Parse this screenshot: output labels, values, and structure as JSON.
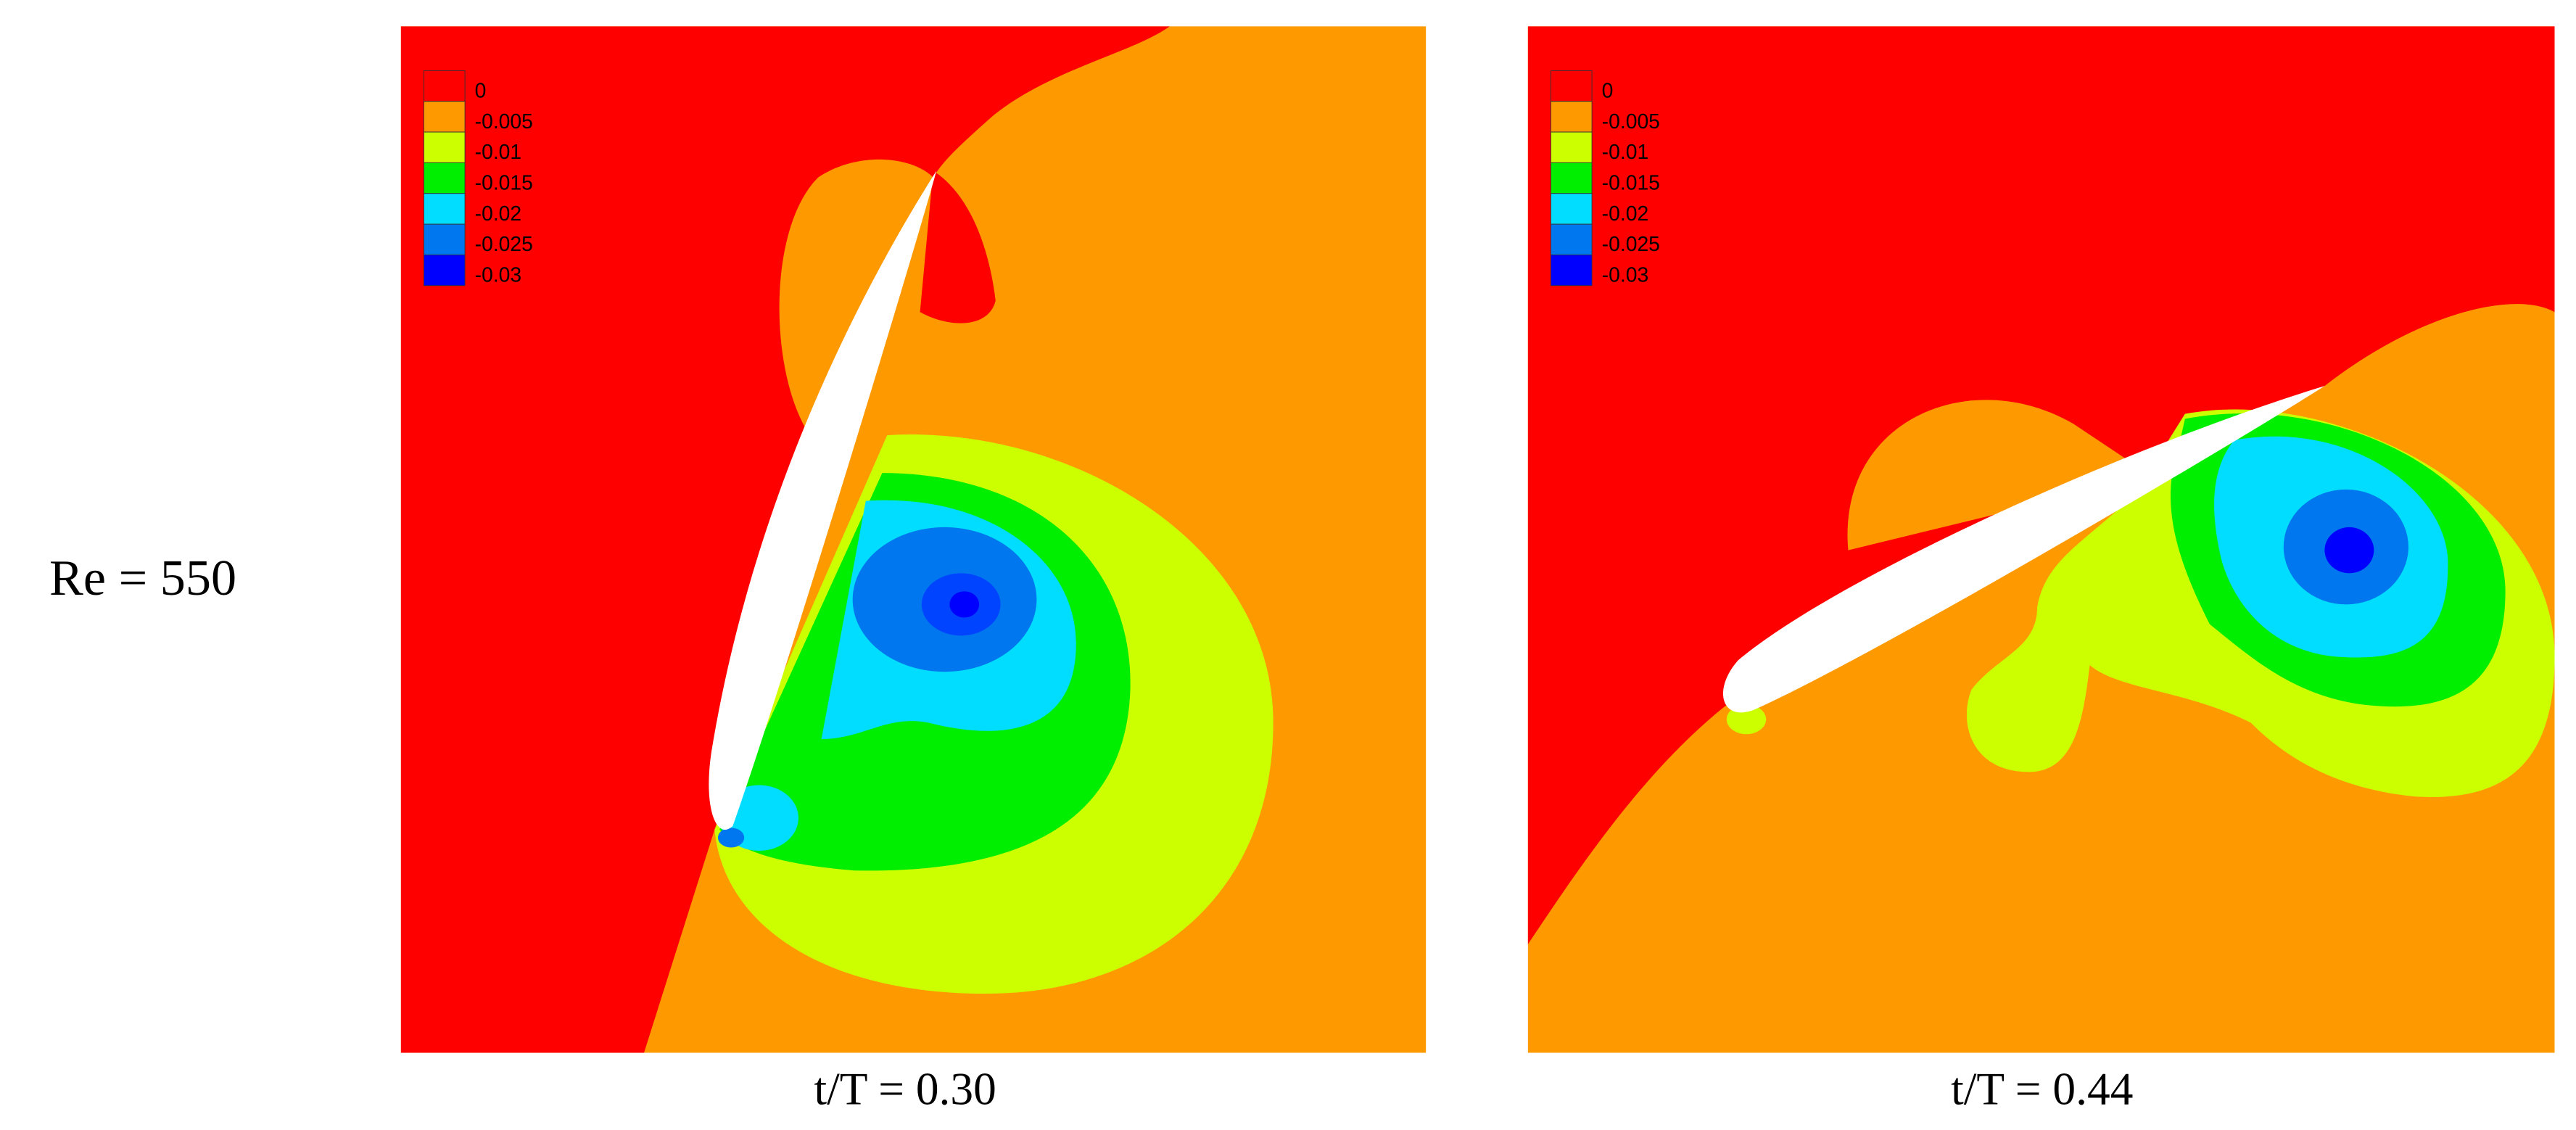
{
  "row_label": "Re = 550",
  "panels": [
    {
      "caption": "t/T = 0.30",
      "legend": [
        {
          "label": "0",
          "color": "#ff0000"
        },
        {
          "label": "-0.005",
          "color": "#ff9900"
        },
        {
          "label": "-0.01",
          "color": "#ccff00"
        },
        {
          "label": "-0.015",
          "color": "#00ee00"
        },
        {
          "label": "-0.02",
          "color": "#00ddff"
        },
        {
          "label": "-0.025",
          "color": "#0077ee"
        },
        {
          "label": "-0.03",
          "color": "#0000ff"
        }
      ]
    },
    {
      "caption": "t/T = 0.44",
      "legend": [
        {
          "label": "0",
          "color": "#ff0000"
        },
        {
          "label": "-0.005",
          "color": "#ff9900"
        },
        {
          "label": "-0.01",
          "color": "#ccff00"
        },
        {
          "label": "-0.015",
          "color": "#00ee00"
        },
        {
          "label": "-0.02",
          "color": "#00ddff"
        },
        {
          "label": "-0.025",
          "color": "#0077ee"
        },
        {
          "label": "-0.03",
          "color": "#0000ff"
        }
      ]
    }
  ]
}
